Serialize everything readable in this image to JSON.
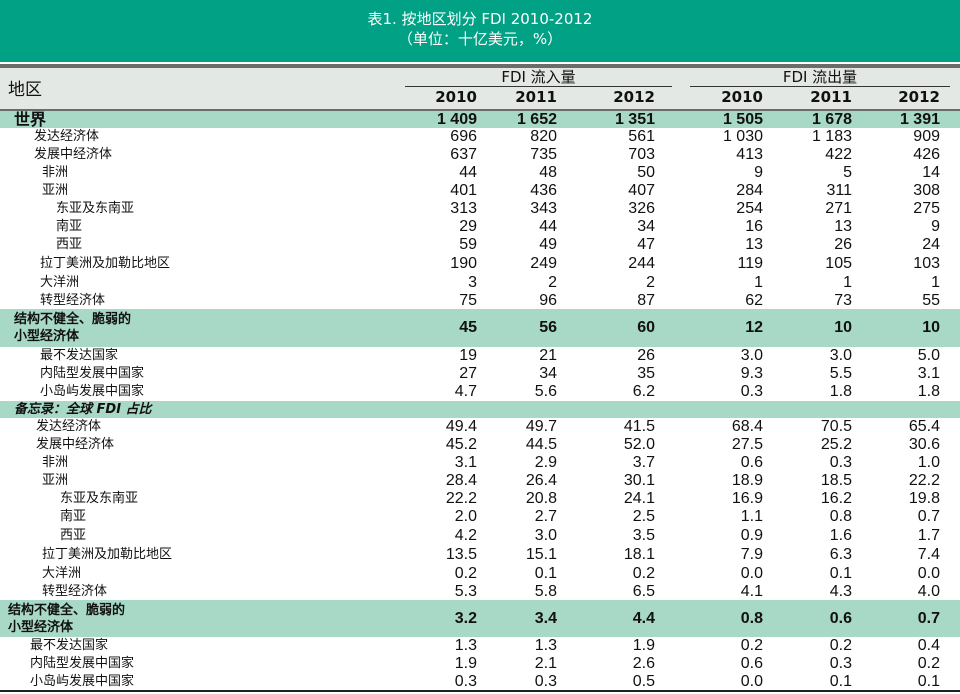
{
  "title": {
    "line1": "表1. 按地区划分 FDI 2010-2012",
    "line2": "（单位：十亿美元，%）"
  },
  "header": {
    "region_label": "地区",
    "inflow_label": "FDI 流入量",
    "outflow_label": "FDI 流出量",
    "years": [
      "2010",
      "2011",
      "2012",
      "2010",
      "2011",
      "2012"
    ]
  },
  "rows": [
    {
      "name": "世界",
      "values": [
        "1 409",
        "1 652",
        "1 351",
        "1 505",
        "1 678",
        "1 391"
      ]
    },
    {
      "name": "发达经济体",
      "values": [
        "696",
        "820",
        "561",
        "1 030",
        "1 183",
        "909"
      ]
    },
    {
      "name": "发展中经济体",
      "values": [
        "637",
        "735",
        "703",
        "413",
        "422",
        "426"
      ]
    },
    {
      "name": "非洲",
      "values": [
        "44",
        "48",
        "50",
        "9",
        "5",
        "14"
      ]
    },
    {
      "name": "亚洲",
      "values": [
        "401",
        "436",
        "407",
        "284",
        "311",
        "308"
      ]
    },
    {
      "name": "东亚及东南亚",
      "values": [
        "313",
        "343",
        "326",
        "254",
        "271",
        "275"
      ]
    },
    {
      "name": "南亚",
      "values": [
        "29",
        "44",
        "34",
        "16",
        "13",
        "9"
      ]
    },
    {
      "name": "西亚",
      "values": [
        "59",
        "49",
        "47",
        "13",
        "26",
        "24"
      ]
    },
    {
      "name": "拉丁美洲及加勒比地区",
      "values": [
        "190",
        "249",
        "244",
        "119",
        "105",
        "103"
      ]
    },
    {
      "name": "大洋洲",
      "values": [
        "3",
        "2",
        "2",
        "1",
        "1",
        "1"
      ]
    },
    {
      "name": "转型经济体",
      "values": [
        "75",
        "96",
        "87",
        "62",
        "73",
        "55"
      ]
    },
    {
      "name": "结构不健全、脆弱的",
      "name2": "小型经济体",
      "values": [
        "45",
        "56",
        "60",
        "12",
        "10",
        "10"
      ]
    },
    {
      "name": "最不发达国家",
      "values": [
        "19",
        "21",
        "26",
        "3.0",
        "3.0",
        "5.0"
      ]
    },
    {
      "name": "内陆型发展中国家",
      "values": [
        "27",
        "34",
        "35",
        "9.3",
        "5.5",
        "3.1"
      ]
    },
    {
      "name": "小岛屿发展中国家",
      "values": [
        "4.7",
        "5.6",
        "6.2",
        "0.3",
        "1.8",
        "1.8"
      ]
    },
    {
      "name": "备忘录：全球 FDI 占比",
      "values": []
    },
    {
      "name": "发达经济体",
      "values": [
        "49.4",
        "49.7",
        "41.5",
        "68.4",
        "70.5",
        "65.4"
      ]
    },
    {
      "name": "发展中经济体",
      "values": [
        "45.2",
        "44.5",
        "52.0",
        "27.5",
        "25.2",
        "30.6"
      ]
    },
    {
      "name": "非洲",
      "values": [
        "3.1",
        "2.9",
        "3.7",
        "0.6",
        "0.3",
        "1.0"
      ]
    },
    {
      "name": "亚洲",
      "values": [
        "28.4",
        "26.4",
        "30.1",
        "18.9",
        "18.5",
        "22.2"
      ]
    },
    {
      "name": "东亚及东南亚",
      "values": [
        "22.2",
        "20.8",
        "24.1",
        "16.9",
        "16.2",
        "19.8"
      ]
    },
    {
      "name": "南亚",
      "values": [
        "2.0",
        "2.7",
        "2.5",
        "1.1",
        "0.8",
        "0.7"
      ]
    },
    {
      "name": "西亚",
      "values": [
        "4.2",
        "3.0",
        "3.5",
        "0.9",
        "1.6",
        "1.7"
      ]
    },
    {
      "name": "拉丁美洲及加勒比地区",
      "values": [
        "13.5",
        "15.1",
        "18.1",
        "7.9",
        "6.3",
        "7.4"
      ]
    },
    {
      "name": "大洋洲",
      "values": [
        "0.2",
        "0.1",
        "0.2",
        "0.0",
        "0.1",
        "0.0"
      ]
    },
    {
      "name": "转型经济体",
      "values": [
        "5.3",
        "5.8",
        "6.5",
        "4.1",
        "4.3",
        "4.0"
      ]
    },
    {
      "name": "结构不健全、脆弱的",
      "name2": "小型经济体",
      "values": [
        "3.2",
        "3.4",
        "4.4",
        "0.8",
        "0.6",
        "0.7"
      ]
    },
    {
      "name": "最不发达国家",
      "values": [
        "1.3",
        "1.3",
        "1.9",
        "0.2",
        "0.2",
        "0.4"
      ]
    },
    {
      "name": "内陆型发展中国家",
      "values": [
        "1.9",
        "2.1",
        "2.6",
        "0.6",
        "0.3",
        "0.2"
      ]
    },
    {
      "name": "小岛屿发展中国家",
      "values": [
        "0.3",
        "0.3",
        "0.5",
        "0.0",
        "0.1",
        "0.1"
      ]
    }
  ]
}
